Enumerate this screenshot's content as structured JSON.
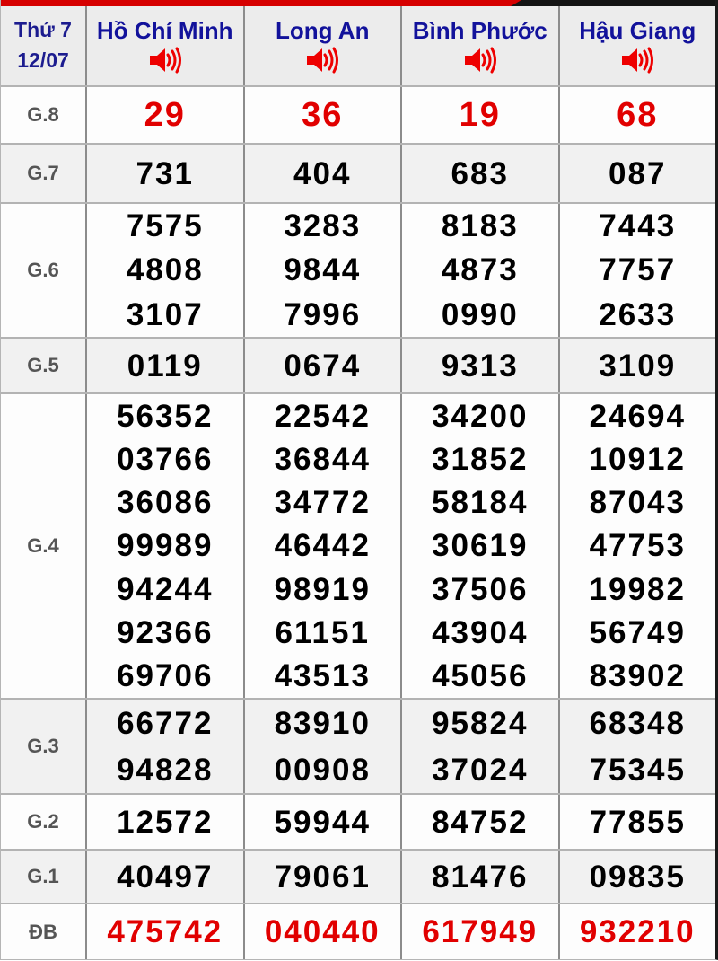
{
  "header": {
    "day": "Thứ 7",
    "date": "12/07",
    "provinces": [
      "Hồ Chí Minh",
      "Long An",
      "Bình Phước",
      "Hậu Giang"
    ],
    "speaker_icon": "speaker-icon"
  },
  "colors": {
    "accent_red": "#d60000",
    "accent_dark": "#141414",
    "header_text_blue": "#12129b",
    "red_number": "#e10000",
    "black_number": "#000000",
    "label_gray": "#555555",
    "alt_row_bg": "#f1f1f1",
    "header_bg": "#ececec"
  },
  "prizes": [
    {
      "label": "G.8",
      "highlight": "red",
      "cells": [
        [
          "29"
        ],
        [
          "36"
        ],
        [
          "19"
        ],
        [
          "68"
        ]
      ]
    },
    {
      "label": "G.7",
      "highlight": "none",
      "cells": [
        [
          "731"
        ],
        [
          "404"
        ],
        [
          "683"
        ],
        [
          "087"
        ]
      ]
    },
    {
      "label": "G.6",
      "highlight": "none",
      "cells": [
        [
          "7575",
          "4808",
          "3107"
        ],
        [
          "3283",
          "9844",
          "7996"
        ],
        [
          "8183",
          "4873",
          "0990"
        ],
        [
          "7443",
          "7757",
          "2633"
        ]
      ]
    },
    {
      "label": "G.5",
      "highlight": "none",
      "cells": [
        [
          "0119"
        ],
        [
          "0674"
        ],
        [
          "9313"
        ],
        [
          "3109"
        ]
      ]
    },
    {
      "label": "G.4",
      "highlight": "none",
      "cells": [
        [
          "56352",
          "03766",
          "36086",
          "99989",
          "94244",
          "92366",
          "69706"
        ],
        [
          "22542",
          "36844",
          "34772",
          "46442",
          "98919",
          "61151",
          "43513"
        ],
        [
          "34200",
          "31852",
          "58184",
          "30619",
          "37506",
          "43904",
          "45056"
        ],
        [
          "24694",
          "10912",
          "87043",
          "47753",
          "19982",
          "56749",
          "83902"
        ]
      ]
    },
    {
      "label": "G.3",
      "highlight": "none",
      "cells": [
        [
          "66772",
          "94828"
        ],
        [
          "83910",
          "00908"
        ],
        [
          "95824",
          "37024"
        ],
        [
          "68348",
          "75345"
        ]
      ]
    },
    {
      "label": "G.2",
      "highlight": "none",
      "cells": [
        [
          "12572"
        ],
        [
          "59944"
        ],
        [
          "84752"
        ],
        [
          "77855"
        ]
      ]
    },
    {
      "label": "G.1",
      "highlight": "none",
      "cells": [
        [
          "40497"
        ],
        [
          "79061"
        ],
        [
          "81476"
        ],
        [
          "09835"
        ]
      ]
    },
    {
      "label": "ĐB",
      "highlight": "red",
      "cells": [
        [
          "475742"
        ],
        [
          "040440"
        ],
        [
          "617949"
        ],
        [
          "932210"
        ]
      ]
    }
  ]
}
